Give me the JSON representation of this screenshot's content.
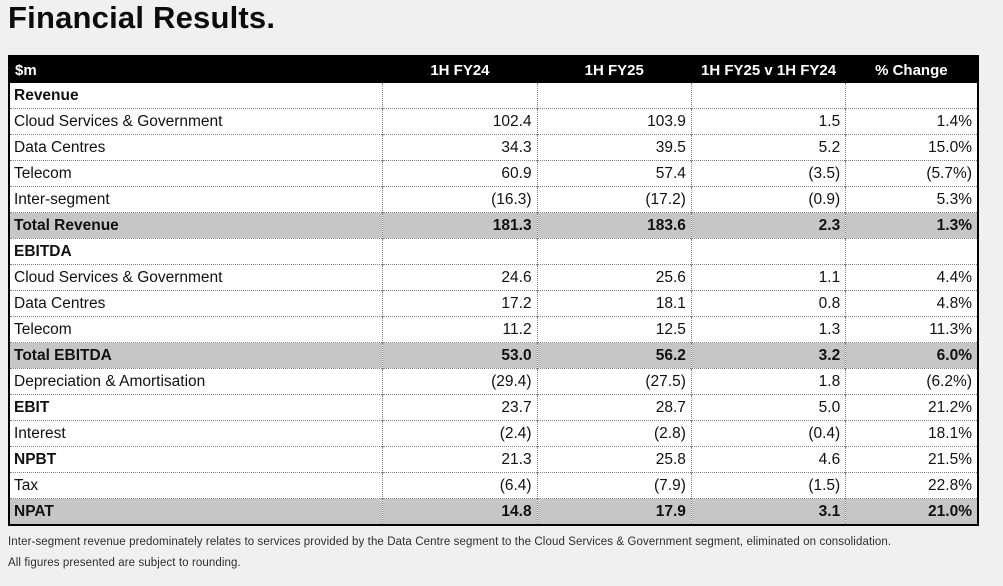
{
  "page": {
    "title": "Financial Results."
  },
  "colors": {
    "page_bg": "#f0f0f0",
    "header_bg": "#000000",
    "header_text": "#ffffff",
    "row_bg": "#ffffff",
    "total_row_bg": "#c6c6c6",
    "border": "#7f7f7f"
  },
  "table": {
    "header": {
      "unit_label": "$m",
      "columns": [
        "1H FY24",
        "1H FY25",
        "1H FY25 v 1H FY24",
        "% Change"
      ]
    },
    "rows": [
      {
        "label": "Revenue",
        "type": "section",
        "values": [
          "",
          "",
          "",
          ""
        ]
      },
      {
        "label": "Cloud Services & Government",
        "type": "data",
        "values": [
          "102.4",
          "103.9",
          "1.5",
          "1.4%"
        ]
      },
      {
        "label": "Data Centres",
        "type": "data",
        "values": [
          "34.3",
          "39.5",
          "5.2",
          "15.0%"
        ]
      },
      {
        "label": "Telecom",
        "type": "data",
        "values": [
          "60.9",
          "57.4",
          "(3.5)",
          "(5.7%)"
        ]
      },
      {
        "label": "Inter-segment",
        "type": "data",
        "values": [
          "(16.3)",
          "(17.2)",
          "(0.9)",
          "5.3%"
        ]
      },
      {
        "label": "Total Revenue",
        "type": "total",
        "values": [
          "181.3",
          "183.6",
          "2.3",
          "1.3%"
        ]
      },
      {
        "label": "EBITDA",
        "type": "section",
        "values": [
          "",
          "",
          "",
          ""
        ]
      },
      {
        "label": "Cloud Services & Government",
        "type": "data",
        "values": [
          "24.6",
          "25.6",
          "1.1",
          "4.4%"
        ]
      },
      {
        "label": "Data Centres",
        "type": "data",
        "values": [
          "17.2",
          "18.1",
          "0.8",
          "4.8%"
        ]
      },
      {
        "label": "Telecom",
        "type": "data",
        "values": [
          "11.2",
          "12.5",
          "1.3",
          "11.3%"
        ]
      },
      {
        "label": "Total EBITDA",
        "type": "total",
        "values": [
          "53.0",
          "56.2",
          "3.2",
          "6.0%"
        ]
      },
      {
        "label": "Depreciation & Amortisation",
        "type": "data",
        "values": [
          "(29.4)",
          "(27.5)",
          "1.8",
          "(6.2%)"
        ]
      },
      {
        "label": "EBIT",
        "type": "bold-label",
        "values": [
          "23.7",
          "28.7",
          "5.0",
          "21.2%"
        ]
      },
      {
        "label": "Interest",
        "type": "data",
        "values": [
          "(2.4)",
          "(2.8)",
          "(0.4)",
          "18.1%"
        ]
      },
      {
        "label": "NPBT",
        "type": "bold-label",
        "values": [
          "21.3",
          "25.8",
          "4.6",
          "21.5%"
        ]
      },
      {
        "label": "Tax",
        "type": "data",
        "values": [
          "(6.4)",
          "(7.9)",
          "(1.5)",
          "22.8%"
        ]
      },
      {
        "label": "NPAT",
        "type": "total",
        "values": [
          "14.8",
          "17.9",
          "3.1",
          "21.0%"
        ]
      }
    ]
  },
  "footnotes": [
    "Inter-segment revenue predominately relates to services provided by the Data Centre segment to the Cloud Services & Government segment, eliminated on consolidation.",
    "All figures presented are subject to rounding."
  ]
}
